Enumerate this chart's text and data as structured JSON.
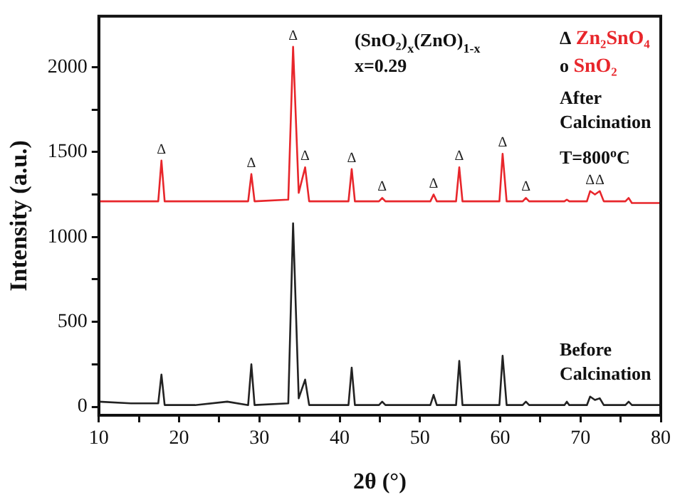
{
  "chart_data": {
    "type": "line",
    "xlabel": "2θ (°)",
    "ylabel": "Intensity (a.u.)",
    "xlim": [
      10,
      80
    ],
    "xticks": [
      10,
      {
        "value": 15,
        "label": null
      },
      20,
      {
        "value": 25,
        "label": null
      },
      30,
      {
        "value": 35,
        "label": null
      },
      40,
      {
        "value": 45,
        "label": null
      },
      50,
      {
        "value": 55,
        "label": null
      },
      60,
      {
        "value": 65,
        "label": null
      },
      70,
      {
        "value": 75,
        "label": null
      },
      80
    ],
    "ylim": [
      -50,
      2300
    ],
    "yticks": [
      0,
      {
        "value": 250,
        "label": null
      },
      500,
      {
        "value": 750,
        "label": null
      },
      1000,
      {
        "value": 1250,
        "label": null
      },
      1500,
      {
        "value": 1750,
        "label": null
      },
      2000
    ],
    "grid": false,
    "legend": false,
    "series": [
      {
        "color": "#e8262b",
        "x": [
          10,
          17.4,
          17.8,
          18.2,
          28.6,
          29,
          29.4,
          33.6,
          34.2,
          34.9,
          35.7,
          36.2,
          41.1,
          41.5,
          41.9,
          44.9,
          45.3,
          45.7,
          51.3,
          51.7,
          52.1,
          54.5,
          54.9,
          55.3,
          59.9,
          60.3,
          60.8,
          62.8,
          63.2,
          63.6,
          68,
          68.3,
          68.6,
          70.8,
          71.2,
          71.8,
          72.4,
          72.9,
          75.6,
          76,
          76.4,
          80
        ],
        "values": [
          1210,
          1210,
          1450,
          1210,
          1210,
          1370,
          1210,
          1220,
          2120,
          1260,
          1410,
          1210,
          1210,
          1400,
          1210,
          1210,
          1230,
          1210,
          1210,
          1250,
          1210,
          1210,
          1410,
          1210,
          1210,
          1490,
          1210,
          1210,
          1230,
          1210,
          1210,
          1220,
          1210,
          1210,
          1270,
          1250,
          1270,
          1210,
          1210,
          1230,
          1200,
          1200
        ]
      },
      {
        "color": "#222222",
        "x": [
          10,
          14,
          17.4,
          17.8,
          18.2,
          22,
          26,
          28.6,
          29,
          29.4,
          33.6,
          34.2,
          34.9,
          35.7,
          36.2,
          41.1,
          41.5,
          41.9,
          44.9,
          45.3,
          45.7,
          51.3,
          51.7,
          52.1,
          54.5,
          54.9,
          55.3,
          59.9,
          60.3,
          60.8,
          62.8,
          63.2,
          63.6,
          68,
          68.3,
          68.6,
          70.8,
          71.2,
          71.8,
          72.4,
          72.9,
          75.6,
          76,
          76.4,
          80
        ],
        "values": [
          30,
          20,
          20,
          190,
          10,
          10,
          30,
          10,
          250,
          10,
          20,
          1080,
          50,
          160,
          10,
          10,
          230,
          10,
          10,
          30,
          10,
          10,
          70,
          10,
          10,
          270,
          10,
          10,
          300,
          10,
          10,
          30,
          10,
          10,
          30,
          10,
          10,
          60,
          40,
          50,
          10,
          10,
          30,
          10,
          10
        ]
      }
    ],
    "annotations": [
      "(SnO₂)$_{x}$(ZnO)$_{1-x}$",
      "x=0.29",
      "Δ Zn₂SnO₄",
      "o SnO₂",
      "After Calcination",
      "T=800$^{o}$C",
      "Before Calcination",
      {
        "text": "Δ",
        "x": 17.8,
        "y": 1450
      },
      {
        "text": "Δ",
        "x": 29,
        "y": 1370
      },
      {
        "text": "Δ",
        "x": 34.2,
        "y": 2120
      },
      {
        "text": "Δ",
        "x": 35.7,
        "y": 1410
      },
      {
        "text": "Δ",
        "x": 41.5,
        "y": 1400
      },
      {
        "text": "Δ",
        "x": 45.3,
        "y": 1230
      },
      {
        "text": "Δ",
        "x": 51.7,
        "y": 1250
      },
      {
        "text": "Δ",
        "x": 54.9,
        "y": 1410
      },
      {
        "text": "Δ",
        "x": 60.3,
        "y": 1490
      },
      {
        "text": "Δ",
        "x": 63.2,
        "y": 1230
      },
      {
        "text": "Δ",
        "x": 71.2,
        "y": 1270
      },
      {
        "text": "Δ",
        "x": 72.4,
        "y": 1270
      }
    ]
  }
}
